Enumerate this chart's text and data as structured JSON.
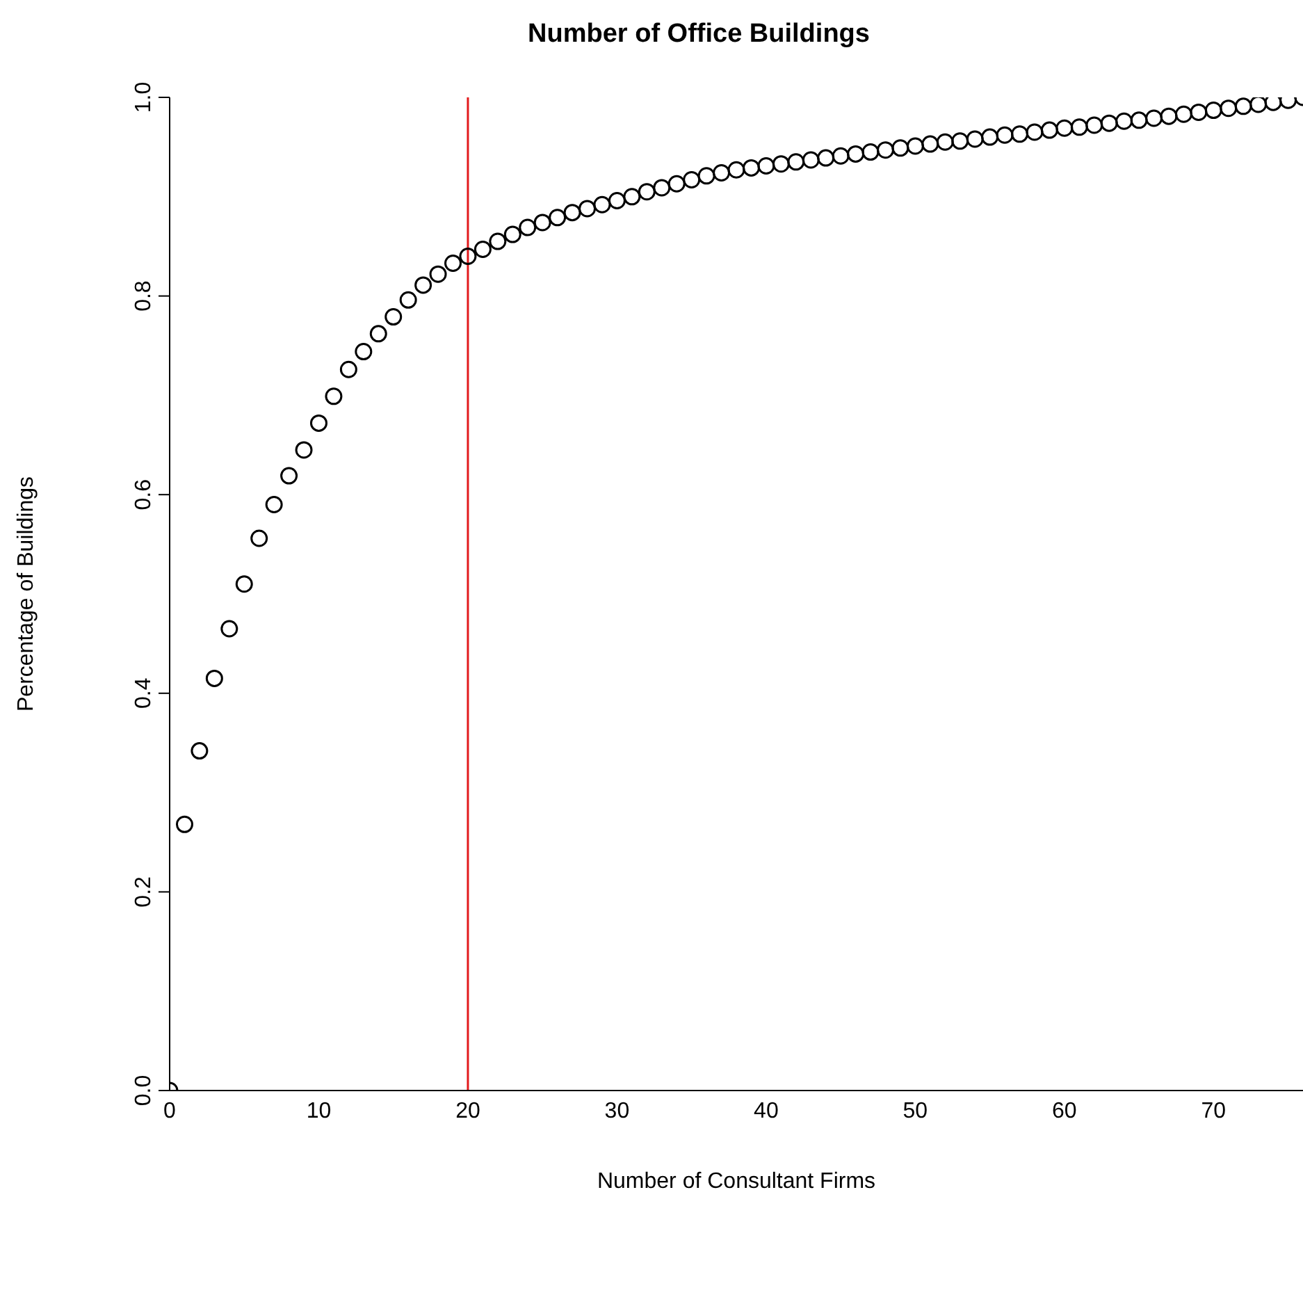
{
  "chart_data": {
    "type": "scatter",
    "title": "Number of Office Buildings",
    "xlabel": "Number of Consultant Firms",
    "ylabel": "Percentage of Buildings",
    "x": [
      0,
      1,
      2,
      3,
      4,
      5,
      6,
      7,
      8,
      9,
      10,
      11,
      12,
      13,
      14,
      15,
      16,
      17,
      18,
      19,
      20,
      21,
      22,
      23,
      24,
      25,
      26,
      27,
      28,
      29,
      30,
      31,
      32,
      33,
      34,
      35,
      36,
      37,
      38,
      39,
      40,
      41,
      42,
      43,
      44,
      45,
      46,
      47,
      48,
      49,
      50,
      51,
      52,
      53,
      54,
      55,
      56,
      57,
      58,
      59,
      60,
      61,
      62,
      63,
      64,
      65,
      66,
      67,
      68,
      69,
      70,
      71,
      72,
      73,
      74,
      75,
      76
    ],
    "series": [
      {
        "color": "#000000",
        "values": [
          0,
          0.268,
          0.342,
          0.415,
          0.465,
          0.51,
          0.556,
          0.59,
          0.619,
          0.645,
          0.672,
          0.699,
          0.726,
          0.744,
          0.762,
          0.779,
          0.796,
          0.811,
          0.822,
          0.833,
          0.84,
          0.847,
          0.855,
          0.862,
          0.869,
          0.874,
          0.879,
          0.884,
          0.888,
          0.892,
          0.896,
          0.9,
          0.905,
          0.909,
          0.913,
          0.917,
          0.921,
          0.924,
          0.927,
          0.929,
          0.931,
          0.933,
          0.935,
          0.937,
          0.939,
          0.941,
          0.943,
          0.945,
          0.947,
          0.949,
          0.951,
          0.953,
          0.955,
          0.956,
          0.958,
          0.96,
          0.962,
          0.963,
          0.965,
          0.967,
          0.969,
          0.97,
          0.972,
          0.974,
          0.976,
          0.977,
          0.979,
          0.981,
          0.983,
          0.985,
          0.987,
          0.989,
          0.991,
          0.993,
          0.995,
          0.997,
          1.0
        ]
      }
    ],
    "xlim": [
      0,
      76
    ],
    "xticks": [
      0,
      10,
      20,
      30,
      40,
      50,
      60,
      70
    ],
    "ylim": [
      0,
      1
    ],
    "yticks": [
      {
        "value": 0,
        "label": "0.0"
      },
      {
        "value": 0.2,
        "label": "0.2"
      },
      {
        "value": 0.4,
        "label": "0.4"
      },
      {
        "value": 0.6,
        "label": "0.6"
      },
      {
        "value": 0.8,
        "label": "0.8"
      },
      {
        "value": 1,
        "label": "1.0"
      }
    ],
    "ref_lines": [
      {
        "axis": "x",
        "value": 20,
        "color": "#e31a1c"
      }
    ],
    "marker": "circle",
    "grid": false,
    "legend": false
  }
}
